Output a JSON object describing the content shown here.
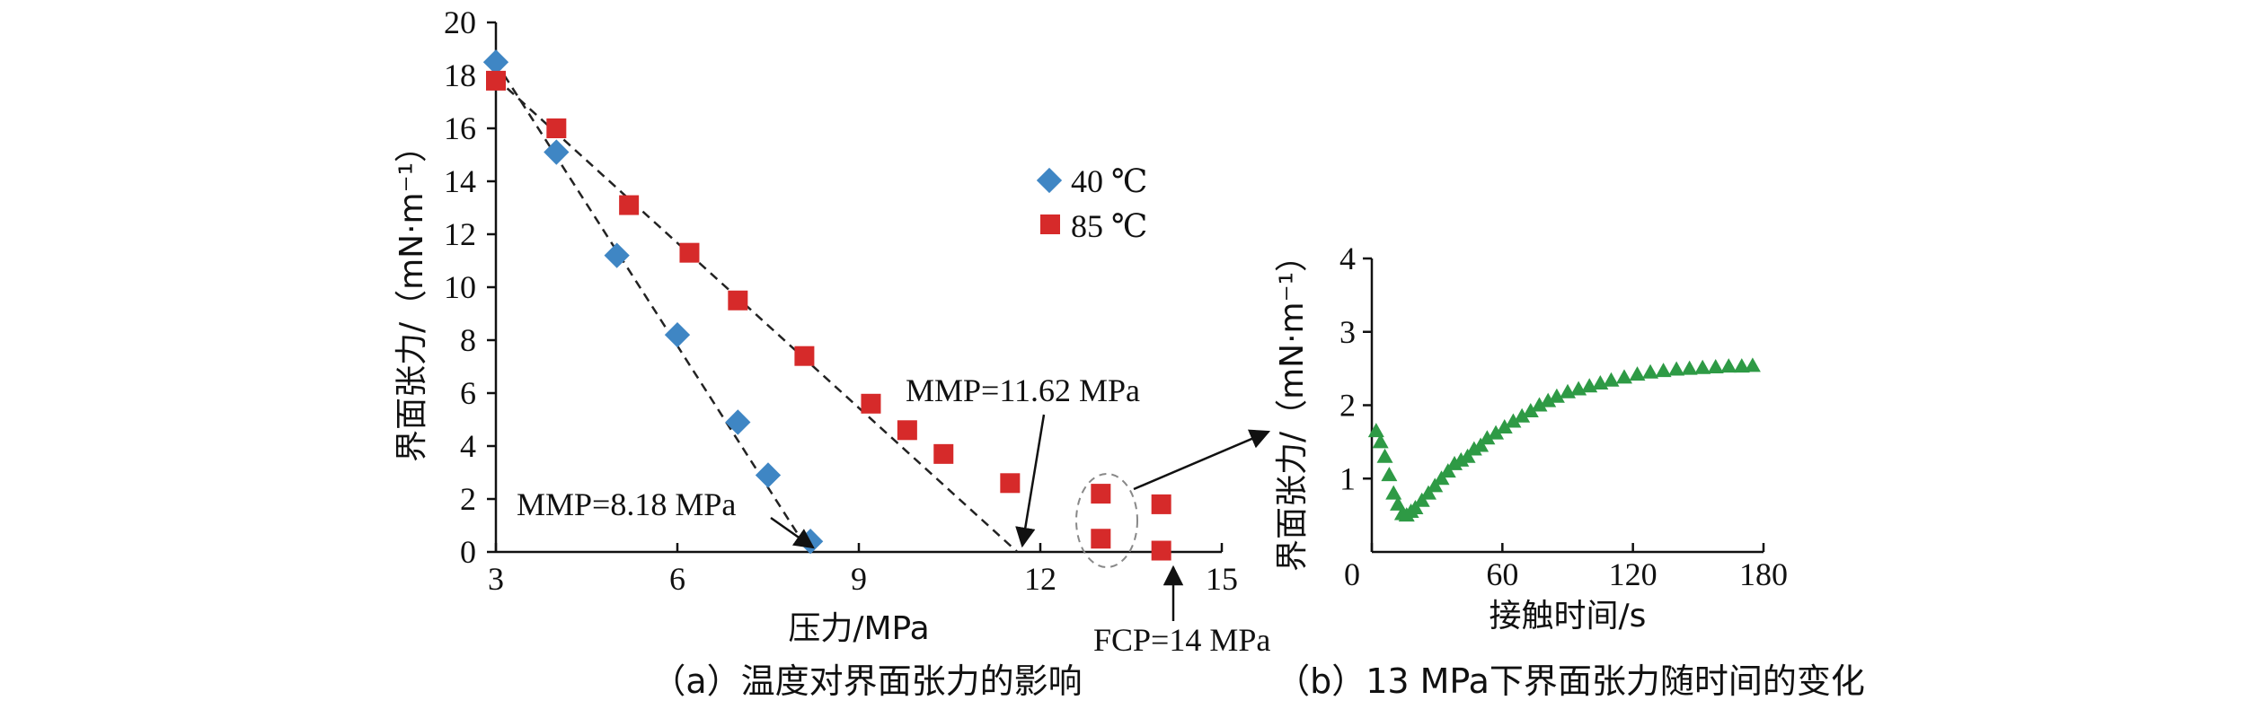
{
  "colors": {
    "series_40C": "#3f86c4",
    "series_85C": "#d62a2a",
    "series_b": "#2e9a45",
    "axis": "#111111",
    "fit_line": "#222222",
    "ellipse": "#888888"
  },
  "panel_a": {
    "caption": "（a）温度对界面张力的影响",
    "xlabel": "压力/MPa",
    "ylabel": "界面张力/（mN·m⁻¹）",
    "xticks": [
      "3",
      "6",
      "9",
      "12",
      "15"
    ],
    "yticks": [
      "0",
      "2",
      "4",
      "6",
      "8",
      "10",
      "12",
      "14",
      "16",
      "18",
      "20"
    ],
    "legend": [
      {
        "label": "40 ℃",
        "marker": "diamond"
      },
      {
        "label": "85 ℃",
        "marker": "square"
      }
    ],
    "annotations": {
      "mmp_40": "MMP=8.18 MPa",
      "mmp_85": "MMP=11.62 MPa",
      "fcp": "FCP=14 MPa"
    }
  },
  "panel_b": {
    "caption": "（b）13 MPa下界面张力随时间的变化",
    "xlabel": "接触时间/s",
    "ylabel": "界面张力/（mN·m⁻¹）",
    "xticks": [
      "0",
      "60",
      "120",
      "180"
    ],
    "yticks": [
      "1",
      "2",
      "3",
      "4"
    ]
  },
  "chart_data": [
    {
      "type": "scatter",
      "xlabel": "压力/MPa",
      "ylabel": "界面张力/（mN·m⁻¹）",
      "xlim": [
        3,
        15
      ],
      "ylim": [
        0,
        20
      ],
      "series": [
        {
          "name": "40 ℃",
          "marker": "diamond",
          "x": [
            3.0,
            4.0,
            5.0,
            6.0,
            7.0,
            7.5,
            8.2
          ],
          "y": [
            18.5,
            15.1,
            11.2,
            8.2,
            4.9,
            2.9,
            0.4
          ]
        },
        {
          "name": "85 ℃",
          "marker": "square",
          "x": [
            3.0,
            4.0,
            5.2,
            6.2,
            7.0,
            8.1,
            9.2,
            9.8,
            10.4,
            11.5,
            13.0,
            13.0,
            14.0,
            14.0
          ],
          "y": [
            17.8,
            16.0,
            13.1,
            11.3,
            9.5,
            7.4,
            5.6,
            4.6,
            3.7,
            2.6,
            2.2,
            0.5,
            1.8,
            0.05
          ]
        }
      ],
      "fit_lines": [
        {
          "series": "40 ℃",
          "from": [
            3.0,
            18.5
          ],
          "to": [
            8.18,
            0
          ]
        },
        {
          "series": "85 ℃",
          "from": [
            3.0,
            17.9
          ],
          "to": [
            11.62,
            0
          ]
        }
      ]
    },
    {
      "type": "scatter",
      "xlabel": "接触时间/s",
      "ylabel": "界面张力/（mN·m⁻¹）",
      "xlim": [
        0,
        180
      ],
      "ylim": [
        0,
        4
      ],
      "series": [
        {
          "marker": "triangle",
          "x": [
            2,
            4,
            6,
            8,
            10,
            12,
            14,
            16,
            18,
            20,
            23,
            26,
            29,
            32,
            35,
            38,
            41,
            44,
            47,
            50,
            53,
            57,
            61,
            65,
            69,
            73,
            77,
            81,
            85,
            90,
            95,
            100,
            105,
            110,
            116,
            122,
            128,
            134,
            140,
            146,
            152,
            158,
            164,
            170,
            175
          ],
          "y": [
            1.65,
            1.5,
            1.3,
            1.05,
            0.8,
            0.65,
            0.52,
            0.5,
            0.55,
            0.6,
            0.7,
            0.8,
            0.9,
            1.0,
            1.1,
            1.2,
            1.25,
            1.3,
            1.4,
            1.45,
            1.55,
            1.62,
            1.7,
            1.78,
            1.85,
            1.92,
            2.0,
            2.06,
            2.12,
            2.18,
            2.22,
            2.26,
            2.3,
            2.34,
            2.38,
            2.42,
            2.45,
            2.47,
            2.49,
            2.5,
            2.51,
            2.52,
            2.53,
            2.53,
            2.54
          ]
        }
      ]
    }
  ]
}
